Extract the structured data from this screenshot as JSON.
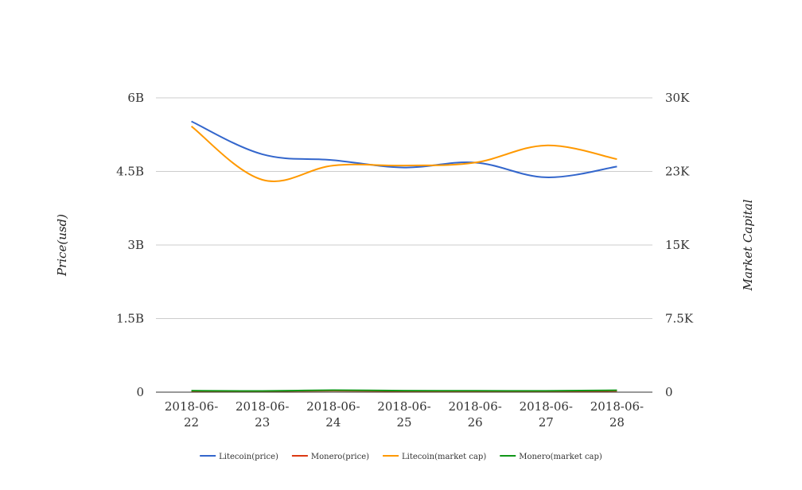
{
  "chart_data": {
    "type": "line",
    "title": "",
    "x": [
      "2018-06-22",
      "2018-06-23",
      "2018-06-24",
      "2018-06-25",
      "2018-06-26",
      "2018-06-27",
      "2018-06-28"
    ],
    "x_tick_labels": [
      [
        "2018-06-",
        "22"
      ],
      [
        "2018-06-",
        "23"
      ],
      [
        "2018-06-",
        "24"
      ],
      [
        "2018-06-",
        "25"
      ],
      [
        "2018-06-",
        "26"
      ],
      [
        "2018-06-",
        "27"
      ],
      [
        "2018-06-",
        "28"
      ]
    ],
    "y_left": {
      "label": "Price(usd)",
      "range": [
        0,
        6000000000
      ],
      "ticks": [
        0,
        1500000000,
        3000000000,
        4500000000,
        6000000000
      ],
      "tick_labels": [
        "0",
        "1.5B",
        "3B",
        "4.5B",
        "6B"
      ]
    },
    "y_right": {
      "label": "Market Capital",
      "range": [
        0,
        30000
      ],
      "ticks": [
        0,
        7500,
        15000,
        22500,
        30000
      ],
      "tick_labels": [
        "0",
        "7.5K",
        "15K",
        "23K",
        "30K"
      ]
    },
    "series": [
      {
        "name": "Litecoin(price)",
        "axis": "left",
        "color": "#3366cc",
        "values": [
          5520000000,
          4850000000,
          4730000000,
          4580000000,
          4680000000,
          4380000000,
          4600000000
        ]
      },
      {
        "name": "Monero(price)",
        "axis": "left",
        "color": "#dc3912",
        "values": [
          22000000,
          20000000,
          30000000,
          22000000,
          21000000,
          21000000,
          26000000
        ]
      },
      {
        "name": "Litecoin(market cap)",
        "axis": "left",
        "color": "#ff9900",
        "values": [
          5420000000,
          4330000000,
          4620000000,
          4620000000,
          4680000000,
          5030000000,
          4750000000
        ]
      },
      {
        "name": "Monero(market cap)",
        "axis": "left",
        "color": "#109618",
        "values": [
          30000000,
          25000000,
          40000000,
          30000000,
          28000000,
          27000000,
          38000000
        ]
      }
    ],
    "grid": true,
    "legend_position": "bottom"
  }
}
